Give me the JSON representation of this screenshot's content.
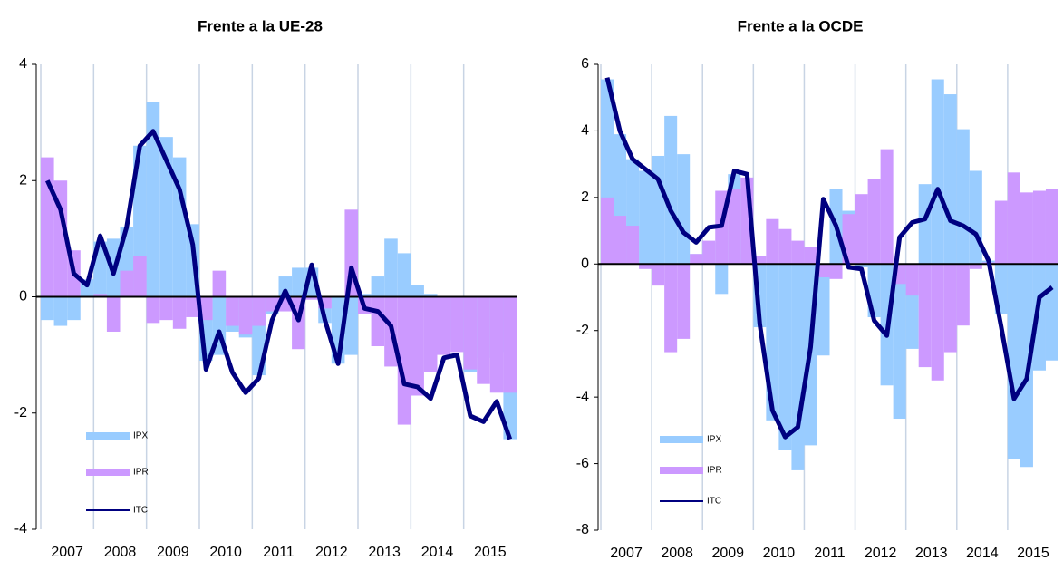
{
  "chart_data": [
    {
      "type": "bar_line",
      "title": "Frente a la UE-28",
      "categories": [
        null,
        "2007",
        null,
        null,
        null,
        "2008",
        null,
        null,
        null,
        "2009",
        null,
        null,
        null,
        "2010",
        null,
        null,
        null,
        "2011",
        null,
        null,
        null,
        "2012",
        null,
        null,
        null,
        "2013",
        null,
        null,
        null,
        "2014",
        null,
        null,
        null,
        "2015",
        null,
        null
      ],
      "ylim": [
        -4,
        4
      ],
      "yticks": [
        -4,
        -2,
        0,
        2,
        4
      ],
      "grid": "x",
      "legend": "lower left",
      "series": [
        {
          "name": "IPX",
          "kind": "bar",
          "color": "#99ccff",
          "values": [
            -0.4,
            -0.5,
            -0.4,
            0.3,
            0.95,
            1.0,
            1.2,
            2.6,
            3.35,
            2.75,
            2.4,
            1.25,
            -1.1,
            -1.0,
            -0.6,
            -0.7,
            -1.35,
            -0.3,
            0.35,
            0.5,
            0.5,
            -0.45,
            -1.15,
            -1.0,
            0.05,
            0.35,
            1.0,
            0.75,
            0.2,
            0.05,
            -0.8,
            -0.75,
            -1.3,
            -1.05,
            -0.95,
            -2.45
          ]
        },
        {
          "name": "IPR",
          "kind": "bar",
          "color": "#cc99ff",
          "values": [
            2.4,
            2.0,
            0.8,
            0.0,
            0.05,
            -0.6,
            0.45,
            0.7,
            -0.45,
            -0.4,
            -0.55,
            -0.35,
            -0.4,
            0.45,
            -0.5,
            -0.65,
            -0.5,
            -0.25,
            -0.25,
            -0.9,
            -0.05,
            -0.2,
            0.0,
            1.5,
            -0.3,
            -0.85,
            -1.2,
            -2.2,
            -1.7,
            -1.3,
            -1.0,
            -0.95,
            -1.25,
            -1.5,
            -1.65,
            -1.65
          ]
        },
        {
          "name": "ITC",
          "kind": "line",
          "color": "#000080",
          "values": [
            2.0,
            1.5,
            0.4,
            0.2,
            1.05,
            0.4,
            1.2,
            2.6,
            2.85,
            2.35,
            1.85,
            0.9,
            -1.25,
            -0.6,
            -1.3,
            -1.65,
            -1.4,
            -0.4,
            0.1,
            -0.4,
            0.55,
            -0.4,
            -1.15,
            0.5,
            -0.2,
            -0.25,
            -0.5,
            -1.5,
            -1.55,
            -1.75,
            -1.05,
            -1.0,
            -2.05,
            -2.15,
            -1.8,
            -2.45
          ]
        }
      ]
    },
    {
      "type": "bar_line",
      "title": "Frente a la OCDE",
      "categories": [
        null,
        "2007",
        null,
        null,
        null,
        "2008",
        null,
        null,
        null,
        "2009",
        null,
        null,
        null,
        "2010",
        null,
        null,
        null,
        "2011",
        null,
        null,
        null,
        "2012",
        null,
        null,
        null,
        "2013",
        null,
        null,
        null,
        "2014",
        null,
        null,
        null,
        "2015",
        null,
        null
      ],
      "ylim": [
        -8,
        6
      ],
      "yticks": [
        -8,
        -6,
        -4,
        -2,
        0,
        2,
        4,
        6
      ],
      "grid": "x",
      "legend": "lower left",
      "series": [
        {
          "name": "IPX",
          "kind": "bar",
          "color": "#99ccff",
          "values": [
            5.55,
            3.9,
            3.15,
            2.8,
            3.25,
            4.45,
            3.3,
            0.3,
            0.65,
            -0.9,
            2.7,
            0.3,
            -1.9,
            -4.7,
            -5.6,
            -6.2,
            -5.45,
            -2.75,
            2.25,
            1.6,
            -0.1,
            -1.6,
            -3.65,
            -4.65,
            -2.55,
            2.4,
            5.55,
            5.1,
            4.05,
            2.8,
            0.1,
            -1.5,
            -5.85,
            -6.1,
            -3.2,
            -2.9
          ]
        },
        {
          "name": "IPR",
          "kind": "bar",
          "color": "#cc99ff",
          "values": [
            2.0,
            1.45,
            1.15,
            -0.15,
            -0.65,
            -2.65,
            -2.25,
            0.3,
            0.7,
            2.2,
            2.25,
            2.6,
            0.25,
            1.35,
            1.05,
            0.7,
            0.5,
            -0.4,
            -0.45,
            1.5,
            2.1,
            2.55,
            3.45,
            -0.6,
            -0.95,
            -3.1,
            -3.5,
            -2.65,
            -1.85,
            -0.15,
            0.05,
            1.9,
            2.75,
            2.15,
            2.2,
            2.25
          ]
        },
        {
          "name": "ITC",
          "kind": "line",
          "color": "#000080",
          "values": [
            5.6,
            4.0,
            3.15,
            2.85,
            2.55,
            1.6,
            0.95,
            0.65,
            1.1,
            1.15,
            2.8,
            2.7,
            -1.8,
            -4.4,
            -5.2,
            -4.9,
            -2.5,
            1.95,
            1.15,
            -0.1,
            -0.15,
            -1.7,
            -2.15,
            0.8,
            1.25,
            1.35,
            2.25,
            1.3,
            1.15,
            0.9,
            0.1,
            -1.9,
            -4.05,
            -3.45,
            -1.0,
            -0.7
          ]
        }
      ]
    }
  ]
}
